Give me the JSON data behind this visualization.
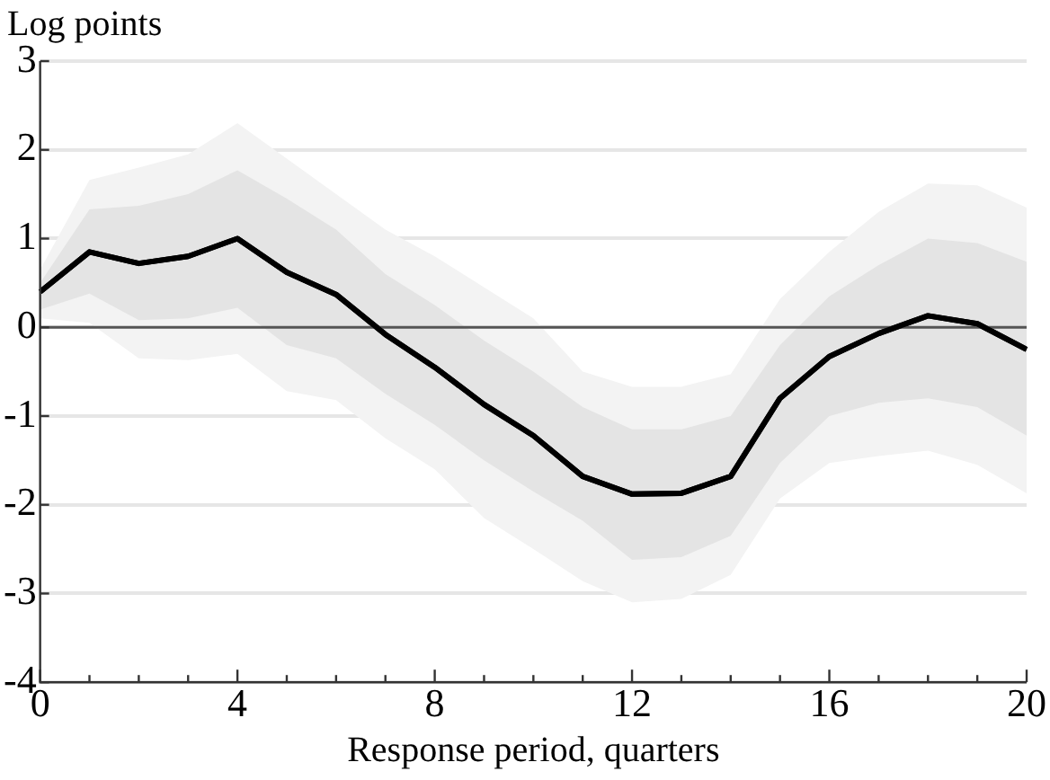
{
  "chart_data": {
    "type": "line",
    "ylabel": "Log points",
    "xlabel": "Response period, quarters",
    "x": [
      0,
      1,
      2,
      3,
      4,
      5,
      6,
      7,
      8,
      9,
      10,
      11,
      12,
      13,
      14,
      15,
      16,
      17,
      18,
      19,
      20
    ],
    "series": [
      {
        "color": "#f3f3f3",
        "values": [
          null,
          null,
          null,
          null,
          null,
          null,
          null,
          null,
          null,
          null,
          null,
          null,
          null,
          null,
          null,
          null,
          null,
          null,
          null,
          null,
          null
        ],
        "upper": [
          0.65,
          1.66,
          1.8,
          1.95,
          2.3,
          1.9,
          1.5,
          1.1,
          0.8,
          0.45,
          0.1,
          -0.5,
          -0.67,
          -0.67,
          -0.53,
          0.32,
          0.85,
          1.3,
          1.62,
          1.6,
          1.35
        ],
        "lower": [
          0.1,
          0.05,
          -0.35,
          -0.37,
          -0.3,
          -0.72,
          -0.82,
          -1.25,
          -1.6,
          -2.15,
          -2.5,
          -2.86,
          -3.1,
          -3.06,
          -2.79,
          -1.93,
          -1.53,
          -1.45,
          -1.39,
          -1.55,
          -1.87
        ]
      },
      {
        "color": "#e4e4e4",
        "values": [
          null,
          null,
          null,
          null,
          null,
          null,
          null,
          null,
          null,
          null,
          null,
          null,
          null,
          null,
          null,
          null,
          null,
          null,
          null,
          null,
          null
        ],
        "upper": [
          0.5,
          1.33,
          1.37,
          1.5,
          1.77,
          1.45,
          1.1,
          0.6,
          0.25,
          -0.15,
          -0.5,
          -0.9,
          -1.15,
          -1.15,
          -1.0,
          -0.2,
          0.35,
          0.7,
          1.0,
          0.95,
          0.74
        ],
        "lower": [
          0.2,
          0.38,
          0.08,
          0.1,
          0.22,
          -0.2,
          -0.35,
          -0.75,
          -1.1,
          -1.5,
          -1.85,
          -2.18,
          -2.62,
          -2.59,
          -2.35,
          -1.53,
          -1.0,
          -0.85,
          -0.8,
          -0.9,
          -1.22
        ]
      },
      {
        "color": "#000000",
        "values": [
          0.4,
          0.85,
          0.72,
          0.8,
          1.0,
          0.62,
          0.37,
          -0.08,
          -0.45,
          -0.87,
          -1.22,
          -1.68,
          -1.88,
          -1.87,
          -1.68,
          -0.8,
          -0.33,
          -0.07,
          0.13,
          0.04,
          -0.25
        ]
      }
    ],
    "xlim": [
      0,
      20
    ],
    "xticks": [
      0,
      {
        "value": 1,
        "label": null
      },
      {
        "value": 2,
        "label": null
      },
      {
        "value": 3,
        "label": null
      },
      4,
      {
        "value": 5,
        "label": null
      },
      {
        "value": 6,
        "label": null
      },
      {
        "value": 7,
        "label": null
      },
      8,
      {
        "value": 9,
        "label": null
      },
      {
        "value": 10,
        "label": null
      },
      {
        "value": 11,
        "label": null
      },
      12,
      {
        "value": 13,
        "label": null
      },
      {
        "value": 14,
        "label": null
      },
      {
        "value": 15,
        "label": null
      },
      16,
      {
        "value": 17,
        "label": null
      },
      {
        "value": 18,
        "label": null
      },
      {
        "value": 19,
        "label": null
      },
      20
    ],
    "ylim": [
      -4,
      3
    ],
    "yticks": [
      -4,
      -3,
      -2,
      -1,
      0,
      1,
      2,
      3
    ],
    "ref_lines": [
      {
        "axis": "y",
        "value": 0,
        "color": "#555555"
      }
    ],
    "grid": "y",
    "legend": false,
    "marker": "none",
    "line_style": "solid"
  }
}
